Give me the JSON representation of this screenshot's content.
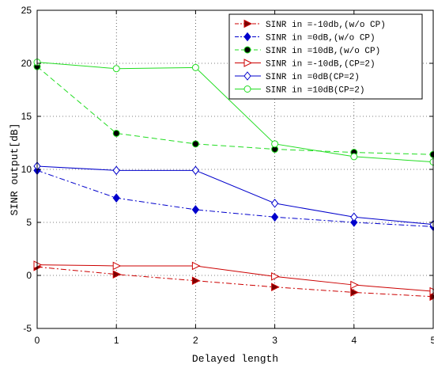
{
  "chart_data": {
    "type": "line",
    "title": "",
    "xlabel": "Delayed length",
    "ylabel": "SINR output[dB]",
    "xlim": [
      0,
      5
    ],
    "ylim": [
      -5,
      25
    ],
    "xticks": [
      0,
      1,
      2,
      3,
      4,
      5
    ],
    "yticks": [
      -5,
      0,
      5,
      10,
      15,
      20,
      25
    ],
    "grid": true,
    "legend_position": "top-right",
    "x": [
      0,
      1,
      2,
      3,
      4,
      5
    ],
    "series": [
      {
        "name": "SINR in =-10db,(w/o CP)",
        "values": [
          0.8,
          0.1,
          -0.5,
          -1.1,
          -1.6,
          -2.0
        ],
        "color": "#cc0000",
        "line": "dashdot",
        "marker": "triangle-right-filled"
      },
      {
        "name": "SINR in =0dB,(w/o CP)",
        "values": [
          9.9,
          7.3,
          6.2,
          5.5,
          5.0,
          4.6
        ],
        "color": "#0000cc",
        "line": "dashdot",
        "marker": "diamond-filled"
      },
      {
        "name": "SINR in =10dB,(w/o CP)",
        "values": [
          19.7,
          13.4,
          12.4,
          11.9,
          11.6,
          11.4
        ],
        "color": "#22dd22",
        "line": "dashed",
        "marker": "circle-filled"
      },
      {
        "name": "SINR in =-10dB,(CP=2)",
        "values": [
          1.0,
          0.9,
          0.9,
          -0.1,
          -0.9,
          -1.5
        ],
        "color": "#cc0000",
        "line": "solid",
        "marker": "triangle-right-open"
      },
      {
        "name": "SINR in =0dB(CP=2)",
        "values": [
          10.3,
          9.9,
          9.9,
          6.8,
          5.5,
          4.8
        ],
        "color": "#0000cc",
        "line": "solid",
        "marker": "diamond-open"
      },
      {
        "name": "SINR in =10dB(CP=2)",
        "values": [
          20.1,
          19.5,
          19.6,
          12.4,
          11.2,
          10.7
        ],
        "color": "#22dd22",
        "line": "solid",
        "marker": "circle-open"
      }
    ]
  }
}
